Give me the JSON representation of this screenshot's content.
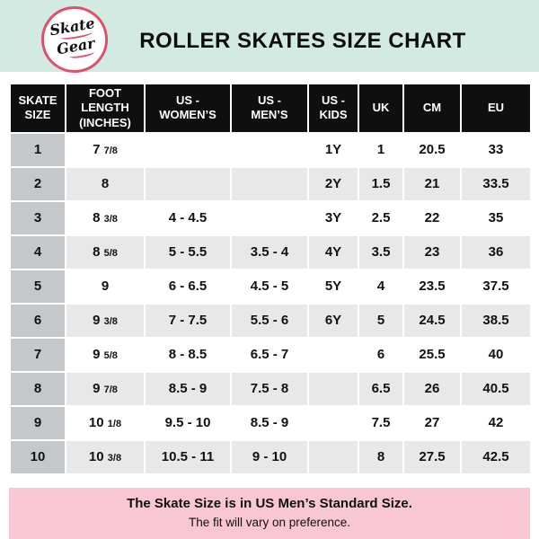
{
  "header": {
    "logo": {
      "line1": "Skate",
      "line2": "Gear"
    },
    "title": "ROLLER SKATES SIZE CHART"
  },
  "chart_data": {
    "type": "table",
    "title": "ROLLER SKATES SIZE CHART",
    "columns": [
      "SKATE\nSIZE",
      "FOOT\nLENGTH\n(INCHES)",
      "US -\nWOMEN’S",
      "US -\nMEN’S",
      "US -\nKIDS",
      "UK",
      "CM",
      "EU"
    ],
    "column_ids": [
      "skate-size",
      "foot-length-inches",
      "us-womens",
      "us-mens",
      "us-kids",
      "uk",
      "cm",
      "eu"
    ],
    "rows": [
      [
        "1",
        "7 7/8",
        "",
        "",
        "1Y",
        "1",
        "20.5",
        "33"
      ],
      [
        "2",
        "8",
        "",
        "",
        "2Y",
        "1.5",
        "21",
        "33.5"
      ],
      [
        "3",
        "8 3/8",
        "4 - 4.5",
        "",
        "3Y",
        "2.5",
        "22",
        "35"
      ],
      [
        "4",
        "8 5/8",
        "5 - 5.5",
        "3.5 - 4",
        "4Y",
        "3.5",
        "23",
        "36"
      ],
      [
        "5",
        "9",
        "6 - 6.5",
        "4.5 - 5",
        "5Y",
        "4",
        "23.5",
        "37.5"
      ],
      [
        "6",
        "9 3/8",
        "7 - 7.5",
        "5.5 - 6",
        "6Y",
        "5",
        "24.5",
        "38.5"
      ],
      [
        "7",
        "9 5/8",
        "8 - 8.5",
        "6.5 - 7",
        "",
        "6",
        "25.5",
        "40"
      ],
      [
        "8",
        "9 7/8",
        "8.5 - 9",
        "7.5 - 8",
        "",
        "6.5",
        "26",
        "40.5"
      ],
      [
        "9",
        "10 1/8",
        "9.5 - 10",
        "8.5 - 9",
        "",
        "7.5",
        "27",
        "42"
      ],
      [
        "10",
        "10 3/8",
        "10.5 - 11",
        "9 - 10",
        "",
        "8",
        "27.5",
        "42.5"
      ]
    ]
  },
  "footer": {
    "line1": "The Skate Size is in US Men’s Standard Size.",
    "line2": "The fit will vary on preference."
  },
  "colors": {
    "mint_banner": "#d3eae3",
    "footer_pink": "#f9c6d3",
    "logo_pink": "#e0506e",
    "header_black": "#0f0f0f",
    "size_column_gray": "#c5c8ca",
    "alt_row_gray": "#e8e8e8"
  }
}
